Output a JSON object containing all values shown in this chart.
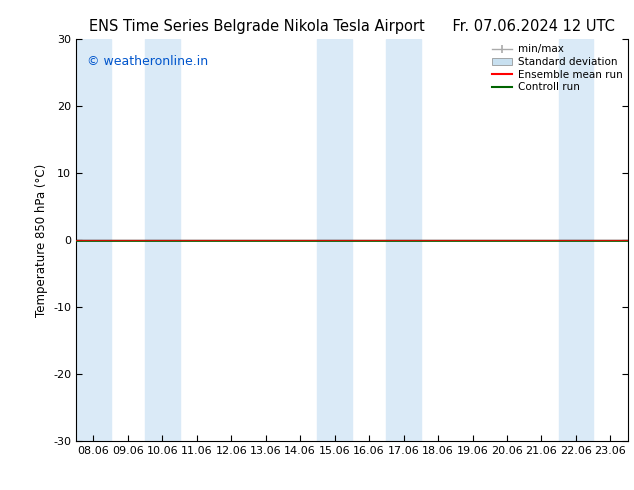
{
  "title": "ENS Time Series Belgrade Nikola Tesla Airport",
  "title_right": "Fr. 07.06.2024 12 UTC",
  "ylabel": "Temperature 850 hPa (°C)",
  "watermark": "© weatheronline.in",
  "ylim": [
    -30,
    30
  ],
  "yticks": [
    -30,
    -20,
    -10,
    0,
    10,
    20,
    30
  ],
  "xtick_labels": [
    "08.06",
    "09.06",
    "10.06",
    "11.06",
    "12.06",
    "13.06",
    "14.06",
    "15.06",
    "16.06",
    "17.06",
    "18.06",
    "19.06",
    "20.06",
    "21.06",
    "22.06",
    "23.06"
  ],
  "background_color": "#ffffff",
  "plot_bg_color": "#ffffff",
  "shaded_band_color": "#daeaf7",
  "shaded_band_indices": [
    0,
    2,
    7,
    9,
    14
  ],
  "zero_line_color": "#000000",
  "control_run_color": "#006400",
  "ensemble_mean_color": "#ff0000",
  "legend_minmax_color": "#aaaaaa",
  "legend_std_color": "#c8e0f0",
  "title_fontsize": 10.5,
  "ylabel_fontsize": 8.5,
  "tick_fontsize": 8,
  "watermark_color": "#0055cc",
  "watermark_fontsize": 9
}
